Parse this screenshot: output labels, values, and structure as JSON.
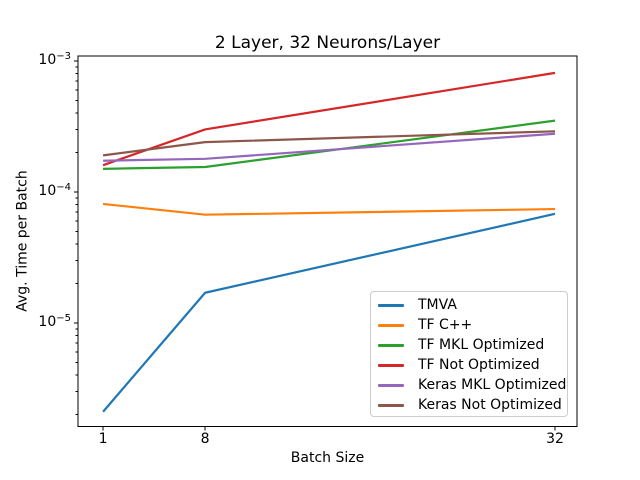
{
  "chart_data": {
    "type": "line",
    "title": "2 Layer, 32 Neurons/Layer",
    "xlabel": "Batch Size",
    "ylabel": "Avg. Time per Batch",
    "x_scale": "linear",
    "y_scale": "log",
    "grid": false,
    "legend_position": "lower right",
    "x": [
      1,
      8,
      32
    ],
    "x_ticks": [
      1,
      8,
      32
    ],
    "xlim": [
      -0.72,
      33.51
    ],
    "ylim": [
      1.62e-06,
      0.00109
    ],
    "y_ticks": [
      {
        "value": 0.001,
        "base": "10",
        "exp": "−3"
      },
      {
        "value": 0.0001,
        "base": "10",
        "exp": "−4"
      },
      {
        "value": 1e-05,
        "base": "10",
        "exp": "−5"
      }
    ],
    "series": [
      {
        "name": "TMVA",
        "color": "#1f77b4",
        "values": [
          2.1e-06,
          1.7e-05,
          6.8e-05
        ]
      },
      {
        "name": "TF C++",
        "color": "#ff7f0e",
        "values": [
          8.1e-05,
          6.7e-05,
          7.4e-05
        ]
      },
      {
        "name": "TF MKL Optimized",
        "color": "#2ca02c",
        "values": [
          0.00015,
          0.000155,
          0.00035
        ]
      },
      {
        "name": "TF Not Optimized",
        "color": "#d62728",
        "values": [
          0.00016,
          0.0003,
          0.00081
        ]
      },
      {
        "name": "Keras MKL Optimized",
        "color": "#9467bd",
        "values": [
          0.000173,
          0.000179,
          0.000278
        ]
      },
      {
        "name": "Keras Not Optimized",
        "color": "#8c564b",
        "values": [
          0.00019,
          0.00024,
          0.00029
        ]
      }
    ],
    "axis_color": "#000000",
    "background_color": "#ffffff"
  }
}
